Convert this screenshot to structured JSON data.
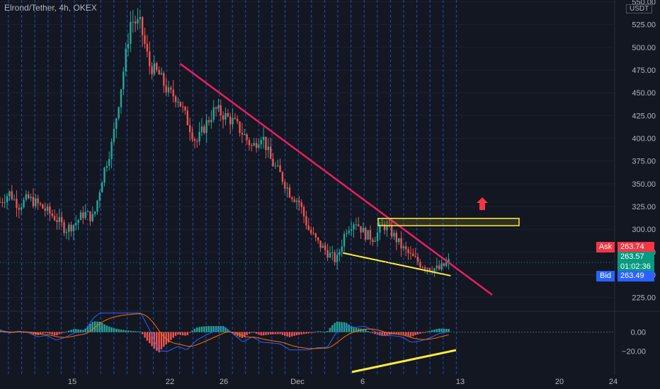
{
  "header": {
    "title": "Elrond/Tether, 4h, OKEX",
    "currency": "USDT"
  },
  "colors": {
    "background": "#131722",
    "grid_dashed": "#2962ff",
    "grid": "#1e222d",
    "up": "#26a69a",
    "down": "#ef5350",
    "trendline_pink": "#e91e63",
    "trendline_yellow": "#ffeb3b",
    "arrow": "#f23645",
    "macd_line": "#2962ff",
    "signal_line": "#ff6d00",
    "ask": "#f23645",
    "last": "#089981",
    "bid": "#2962ff"
  },
  "chart_data": [
    {
      "type": "candlestick",
      "title": "Elrond/Tether, 4h, OKEX",
      "x_ticks": [
        "15",
        "22",
        "26",
        "Dec",
        "6",
        "13",
        "20",
        "24"
      ],
      "y_ticks": [
        "225.00",
        "250.00",
        "275.00",
        "300.00",
        "325.00",
        "350.00",
        "375.00",
        "400.00",
        "425.00",
        "450.00",
        "475.00",
        "500.00",
        "525.00",
        "550.00"
      ],
      "ylim": [
        210,
        552
      ],
      "price_labels": {
        "ask_label": "Ask",
        "ask": "263.74",
        "last": "263.57",
        "countdown": "01:02:36",
        "bid_label": "Bid",
        "bid": "263.49"
      },
      "close_path": [
        [
          0,
          330
        ],
        [
          2,
          340
        ],
        [
          4,
          326
        ],
        [
          6,
          334
        ],
        [
          8,
          328
        ],
        [
          10,
          320
        ],
        [
          12,
          312
        ],
        [
          14,
          300
        ],
        [
          16,
          306
        ],
        [
          18,
          318
        ],
        [
          20,
          312
        ],
        [
          22,
          360
        ],
        [
          24,
          395
        ],
        [
          26,
          460
        ],
        [
          28,
          530
        ],
        [
          30,
          525
        ],
        [
          32,
          480
        ],
        [
          34,
          470
        ],
        [
          36,
          450
        ],
        [
          38,
          445
        ],
        [
          40,
          420
        ],
        [
          42,
          395
        ],
        [
          44,
          415
        ],
        [
          46,
          432
        ],
        [
          48,
          425
        ],
        [
          50,
          418
        ],
        [
          52,
          405
        ],
        [
          54,
          390
        ],
        [
          56,
          405
        ],
        [
          58,
          375
        ],
        [
          60,
          360
        ],
        [
          62,
          340
        ],
        [
          64,
          330
        ],
        [
          66,
          300
        ],
        [
          68,
          285
        ],
        [
          70,
          275
        ],
        [
          72,
          265
        ],
        [
          74,
          300
        ],
        [
          76,
          310
        ],
        [
          78,
          295
        ],
        [
          80,
          290
        ],
        [
          82,
          305
        ],
        [
          84,
          295
        ],
        [
          86,
          280
        ],
        [
          88,
          270
        ],
        [
          90,
          262
        ],
        [
          92,
          258
        ],
        [
          94,
          256
        ],
        [
          96,
          264
        ]
      ],
      "overlays": {
        "pink_trendline": [
          [
            34,
            482
          ],
          [
            100,
            228
          ]
        ],
        "yellow_trendline": [
          [
            72,
            274
          ],
          [
            94,
            249
          ]
        ],
        "resistance_zone": [
          312,
          304
        ],
        "breakout_arrow": "up"
      }
    },
    {
      "type": "macd",
      "y_ticks": [
        "0.00",
        "−20.00"
      ],
      "ylim": [
        -45,
        22
      ],
      "indicator_trendline": [
        [
          -42
        ],
        [
          -19
        ]
      ]
    }
  ]
}
